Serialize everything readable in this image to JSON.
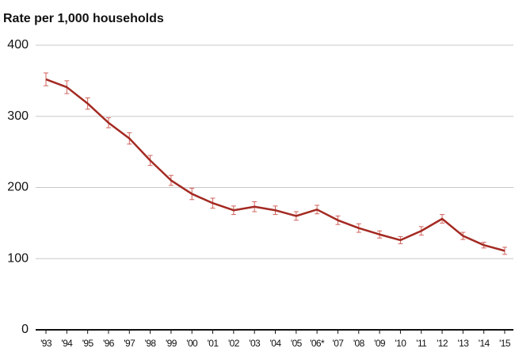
{
  "chart_data": {
    "type": "line",
    "title": "Rate per 1,000 households",
    "categories": [
      "'93",
      "'94",
      "'95",
      "'96",
      "'97",
      "'98",
      "'99",
      "'00",
      "'01",
      "'02",
      "'03",
      "'04",
      "'05",
      "'06*",
      "'07",
      "'08",
      "'09",
      "'10",
      "'11",
      "'12",
      "'13",
      "'14",
      "'15"
    ],
    "series": [
      {
        "name": "Rate",
        "color": "#a32a22",
        "values": [
          352,
          341,
          318,
          291,
          269,
          238,
          210,
          191,
          178,
          168,
          173,
          168,
          160,
          169,
          154,
          143,
          134,
          126,
          139,
          156,
          132,
          119,
          111
        ],
        "errors": [
          9,
          9,
          8,
          7,
          8,
          7,
          7,
          8,
          7,
          6,
          7,
          6,
          6,
          6,
          6,
          6,
          5,
          5,
          6,
          6,
          5,
          4,
          5
        ]
      }
    ],
    "error_color": "#d0635c",
    "ylim": [
      0,
      400
    ],
    "yticks": [
      0,
      100,
      200,
      300,
      400
    ],
    "grid": true
  }
}
